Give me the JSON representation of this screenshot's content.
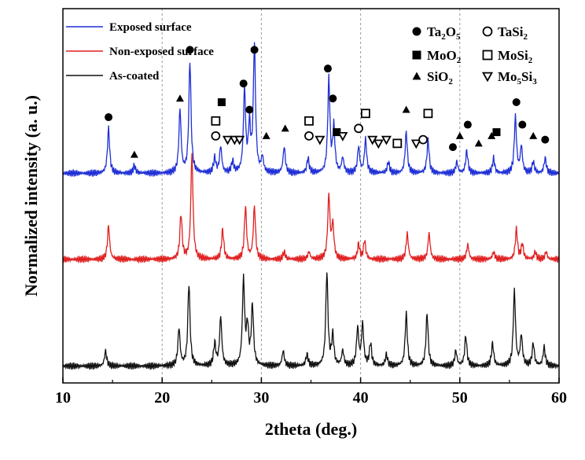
{
  "chart_data": {
    "type": "line",
    "xlabel": "2theta (deg.)",
    "ylabel": "Normalized intensity (a. u.)",
    "xlim": [
      10,
      60
    ],
    "ylim": [
      0,
      1
    ],
    "x_ticks": [
      "10",
      "20",
      "30",
      "40",
      "50",
      "60"
    ],
    "y_ticks": [],
    "grid": "dashed vertical lines at 20, 30, 40, 50",
    "legend_position": "top-left",
    "series": [
      {
        "name": "Exposed surface",
        "color": "#1e2fd6",
        "baseline": 0.56,
        "peaks": [
          [
            14.6,
            0.12
          ],
          [
            17.2,
            0.02
          ],
          [
            21.8,
            0.17
          ],
          [
            22.8,
            0.3
          ],
          [
            25.3,
            0.04
          ],
          [
            25.9,
            0.07
          ],
          [
            27.1,
            0.03
          ],
          [
            28.3,
            0.22
          ],
          [
            28.8,
            0.12
          ],
          [
            29.3,
            0.34
          ],
          [
            30.1,
            0.04
          ],
          [
            32.3,
            0.07
          ],
          [
            34.7,
            0.04
          ],
          [
            36.8,
            0.25
          ],
          [
            37.3,
            0.12
          ],
          [
            38.2,
            0.04
          ],
          [
            39.8,
            0.07
          ],
          [
            40.5,
            0.09
          ],
          [
            42.8,
            0.03
          ],
          [
            44.6,
            0.11
          ],
          [
            46.8,
            0.09
          ],
          [
            49.7,
            0.03
          ],
          [
            50.7,
            0.06
          ],
          [
            53.4,
            0.04
          ],
          [
            55.6,
            0.15
          ],
          [
            56.2,
            0.07
          ],
          [
            57.4,
            0.03
          ],
          [
            58.6,
            0.04
          ]
        ]
      },
      {
        "name": "Non-exposed surface",
        "color": "#e02020",
        "baseline": 0.33,
        "peaks": [
          [
            14.6,
            0.09
          ],
          [
            21.9,
            0.12
          ],
          [
            23.0,
            0.28
          ],
          [
            26.1,
            0.08
          ],
          [
            28.4,
            0.14
          ],
          [
            29.3,
            0.14
          ],
          [
            32.3,
            0.02
          ],
          [
            34.8,
            0.02
          ],
          [
            36.8,
            0.17
          ],
          [
            37.2,
            0.09
          ],
          [
            39.8,
            0.04
          ],
          [
            40.4,
            0.05
          ],
          [
            44.7,
            0.07
          ],
          [
            46.9,
            0.07
          ],
          [
            50.8,
            0.04
          ],
          [
            53.4,
            0.02
          ],
          [
            55.7,
            0.08
          ],
          [
            56.3,
            0.04
          ],
          [
            57.6,
            0.02
          ],
          [
            58.7,
            0.02
          ]
        ]
      },
      {
        "name": "As-coated",
        "color": "#111111",
        "baseline": 0.045,
        "peaks": [
          [
            14.3,
            0.04
          ],
          [
            21.7,
            0.1
          ],
          [
            22.7,
            0.22
          ],
          [
            25.3,
            0.06
          ],
          [
            25.9,
            0.13
          ],
          [
            28.2,
            0.23
          ],
          [
            28.6,
            0.1
          ],
          [
            29.1,
            0.16
          ],
          [
            32.2,
            0.04
          ],
          [
            34.6,
            0.03
          ],
          [
            36.6,
            0.25
          ],
          [
            37.2,
            0.08
          ],
          [
            38.2,
            0.04
          ],
          [
            39.7,
            0.1
          ],
          [
            40.2,
            0.11
          ],
          [
            41.0,
            0.06
          ],
          [
            42.6,
            0.03
          ],
          [
            44.6,
            0.14
          ],
          [
            46.7,
            0.14
          ],
          [
            49.6,
            0.04
          ],
          [
            50.6,
            0.08
          ],
          [
            53.3,
            0.06
          ],
          [
            55.5,
            0.2
          ],
          [
            56.2,
            0.08
          ],
          [
            57.4,
            0.06
          ],
          [
            58.5,
            0.05
          ]
        ]
      }
    ],
    "marker_legend": [
      {
        "symbol": "circle-filled",
        "formula": [
          "Ta",
          "2",
          "O",
          "5"
        ]
      },
      {
        "symbol": "circle-open",
        "formula": [
          "TaSi",
          "2"
        ]
      },
      {
        "symbol": "square-filled",
        "formula": [
          "MoO",
          "2"
        ]
      },
      {
        "symbol": "square-open",
        "formula": [
          "MoSi",
          "2"
        ]
      },
      {
        "symbol": "triangle-filled",
        "formula": [
          "SiO",
          "2"
        ]
      },
      {
        "symbol": "triangle-open",
        "formula": [
          "Mo",
          "5",
          "Si",
          "3"
        ]
      }
    ],
    "annotations": [
      {
        "symbol": "circle-filled",
        "x": 14.6,
        "y": 0.71
      },
      {
        "symbol": "triangle-filled",
        "x": 17.2,
        "y": 0.61
      },
      {
        "symbol": "triangle-filled",
        "x": 21.8,
        "y": 0.76
      },
      {
        "symbol": "circle-filled",
        "x": 22.8,
        "y": 0.89
      },
      {
        "symbol": "square-open",
        "x": 25.4,
        "y": 0.7
      },
      {
        "symbol": "circle-open",
        "x": 25.4,
        "y": 0.66
      },
      {
        "symbol": "square-filled",
        "x": 26.0,
        "y": 0.75
      },
      {
        "symbol": "triangle-open",
        "x": 26.6,
        "y": 0.65
      },
      {
        "symbol": "triangle-open",
        "x": 27.3,
        "y": 0.65
      },
      {
        "symbol": "triangle-open",
        "x": 27.8,
        "y": 0.65
      },
      {
        "symbol": "circle-filled",
        "x": 28.2,
        "y": 0.8
      },
      {
        "symbol": "circle-filled",
        "x": 28.8,
        "y": 0.73
      },
      {
        "symbol": "circle-filled",
        "x": 29.3,
        "y": 0.89
      },
      {
        "symbol": "triangle-filled",
        "x": 30.5,
        "y": 0.66
      },
      {
        "symbol": "triangle-filled",
        "x": 32.4,
        "y": 0.68
      },
      {
        "symbol": "square-open",
        "x": 34.8,
        "y": 0.7
      },
      {
        "symbol": "circle-open",
        "x": 34.8,
        "y": 0.66
      },
      {
        "symbol": "triangle-open",
        "x": 35.9,
        "y": 0.65
      },
      {
        "symbol": "circle-filled",
        "x": 36.7,
        "y": 0.84
      },
      {
        "symbol": "circle-filled",
        "x": 37.2,
        "y": 0.76
      },
      {
        "symbol": "square-filled",
        "x": 37.6,
        "y": 0.67
      },
      {
        "symbol": "triangle-open",
        "x": 38.2,
        "y": 0.66
      },
      {
        "symbol": "circle-open",
        "x": 39.8,
        "y": 0.68
      },
      {
        "symbol": "square-open",
        "x": 40.5,
        "y": 0.72
      },
      {
        "symbol": "triangle-open",
        "x": 41.2,
        "y": 0.65
      },
      {
        "symbol": "triangle-open",
        "x": 41.8,
        "y": 0.64
      },
      {
        "symbol": "triangle-open",
        "x": 42.6,
        "y": 0.65
      },
      {
        "symbol": "square-open",
        "x": 43.7,
        "y": 0.64
      },
      {
        "symbol": "triangle-filled",
        "x": 44.6,
        "y": 0.73
      },
      {
        "symbol": "triangle-open",
        "x": 45.6,
        "y": 0.64
      },
      {
        "symbol": "circle-open",
        "x": 46.3,
        "y": 0.65
      },
      {
        "symbol": "square-open",
        "x": 46.8,
        "y": 0.72
      },
      {
        "symbol": "circle-filled",
        "x": 49.3,
        "y": 0.63
      },
      {
        "symbol": "triangle-filled",
        "x": 50.0,
        "y": 0.66
      },
      {
        "symbol": "circle-filled",
        "x": 50.8,
        "y": 0.69
      },
      {
        "symbol": "triangle-filled",
        "x": 51.9,
        "y": 0.64
      },
      {
        "symbol": "triangle-filled",
        "x": 53.2,
        "y": 0.66
      },
      {
        "symbol": "square-filled",
        "x": 53.7,
        "y": 0.67
      },
      {
        "symbol": "circle-filled",
        "x": 55.7,
        "y": 0.75
      },
      {
        "symbol": "circle-filled",
        "x": 56.3,
        "y": 0.69
      },
      {
        "symbol": "triangle-filled",
        "x": 57.4,
        "y": 0.66
      },
      {
        "symbol": "circle-filled",
        "x": 58.6,
        "y": 0.65
      }
    ]
  }
}
